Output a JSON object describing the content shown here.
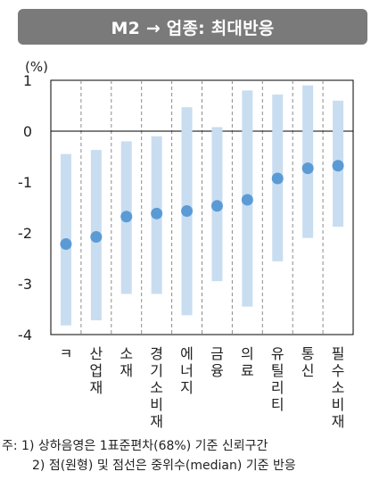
{
  "header": {
    "title": "M2 → 업종: 최대반응"
  },
  "chart_data": {
    "type": "scatter",
    "unit_label": "(%)",
    "ylim": [
      -4,
      1
    ],
    "yticks": [
      1,
      0,
      -1,
      -2,
      -3,
      -4
    ],
    "categories": [
      [
        "ㅋ"
      ],
      [
        "산",
        "업",
        "재"
      ],
      [
        "소",
        "재"
      ],
      [
        "경",
        "기",
        "소",
        "비",
        "재"
      ],
      [
        "에",
        "너",
        "지"
      ],
      [
        "금",
        "융"
      ],
      [
        "의",
        "료"
      ],
      [
        "유",
        "틸",
        "리",
        "티"
      ],
      [
        "통",
        "신"
      ],
      [
        "필",
        "수",
        "소",
        "비",
        "재"
      ]
    ],
    "median": [
      -2.22,
      -2.08,
      -1.68,
      -1.62,
      -1.57,
      -1.47,
      -1.35,
      -0.93,
      -0.73,
      -0.68
    ],
    "band_low": [
      -3.82,
      -3.72,
      -3.2,
      -3.2,
      -3.62,
      -2.95,
      -3.45,
      -2.56,
      -2.1,
      -1.88
    ],
    "band_high": [
      -0.45,
      -0.37,
      -0.2,
      -0.1,
      0.47,
      0.08,
      0.8,
      0.72,
      0.9,
      0.6
    ],
    "colors": {
      "band": "#c9ddf1",
      "median": "#5b9bd5",
      "axis": "#000000",
      "divider": "#8c8c8c"
    }
  },
  "notes": [
    "주: 1) 상하음영은 1표준편차(68%) 기준 신뢰구간",
    "2) 점(원형) 및 점선은 중위수(median) 기준 반응"
  ]
}
